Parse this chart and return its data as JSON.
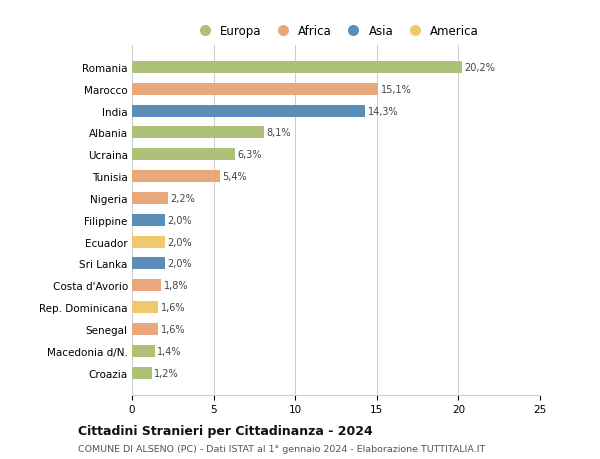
{
  "countries": [
    "Croazia",
    "Macedonia d/N.",
    "Senegal",
    "Rep. Dominicana",
    "Costa d'Avorio",
    "Sri Lanka",
    "Ecuador",
    "Filippine",
    "Nigeria",
    "Tunisia",
    "Ucraina",
    "Albania",
    "India",
    "Marocco",
    "Romania"
  ],
  "values": [
    1.2,
    1.4,
    1.6,
    1.6,
    1.8,
    2.0,
    2.0,
    2.0,
    2.2,
    5.4,
    6.3,
    8.1,
    14.3,
    15.1,
    20.2
  ],
  "labels": [
    "1,2%",
    "1,4%",
    "1,6%",
    "1,6%",
    "1,8%",
    "2,0%",
    "2,0%",
    "2,0%",
    "2,2%",
    "5,4%",
    "6,3%",
    "8,1%",
    "14,3%",
    "15,1%",
    "20,2%"
  ],
  "continents": [
    "Europa",
    "Europa",
    "Africa",
    "America",
    "Africa",
    "Asia",
    "America",
    "Asia",
    "Africa",
    "Africa",
    "Europa",
    "Europa",
    "Asia",
    "Africa",
    "Europa"
  ],
  "colors": {
    "Europa": "#adc178",
    "Africa": "#e8a87c",
    "Asia": "#5b8db8",
    "America": "#f0c96e"
  },
  "legend_order": [
    "Europa",
    "Africa",
    "Asia",
    "America"
  ],
  "title": "Cittadini Stranieri per Cittadinanza - 2024",
  "subtitle": "COMUNE DI ALSENO (PC) - Dati ISTAT al 1° gennaio 2024 - Elaborazione TUTTITALIA.IT",
  "xlim": [
    0,
    25
  ],
  "xticks": [
    0,
    5,
    10,
    15,
    20,
    25
  ],
  "background_color": "#ffffff",
  "grid_color": "#cccccc"
}
